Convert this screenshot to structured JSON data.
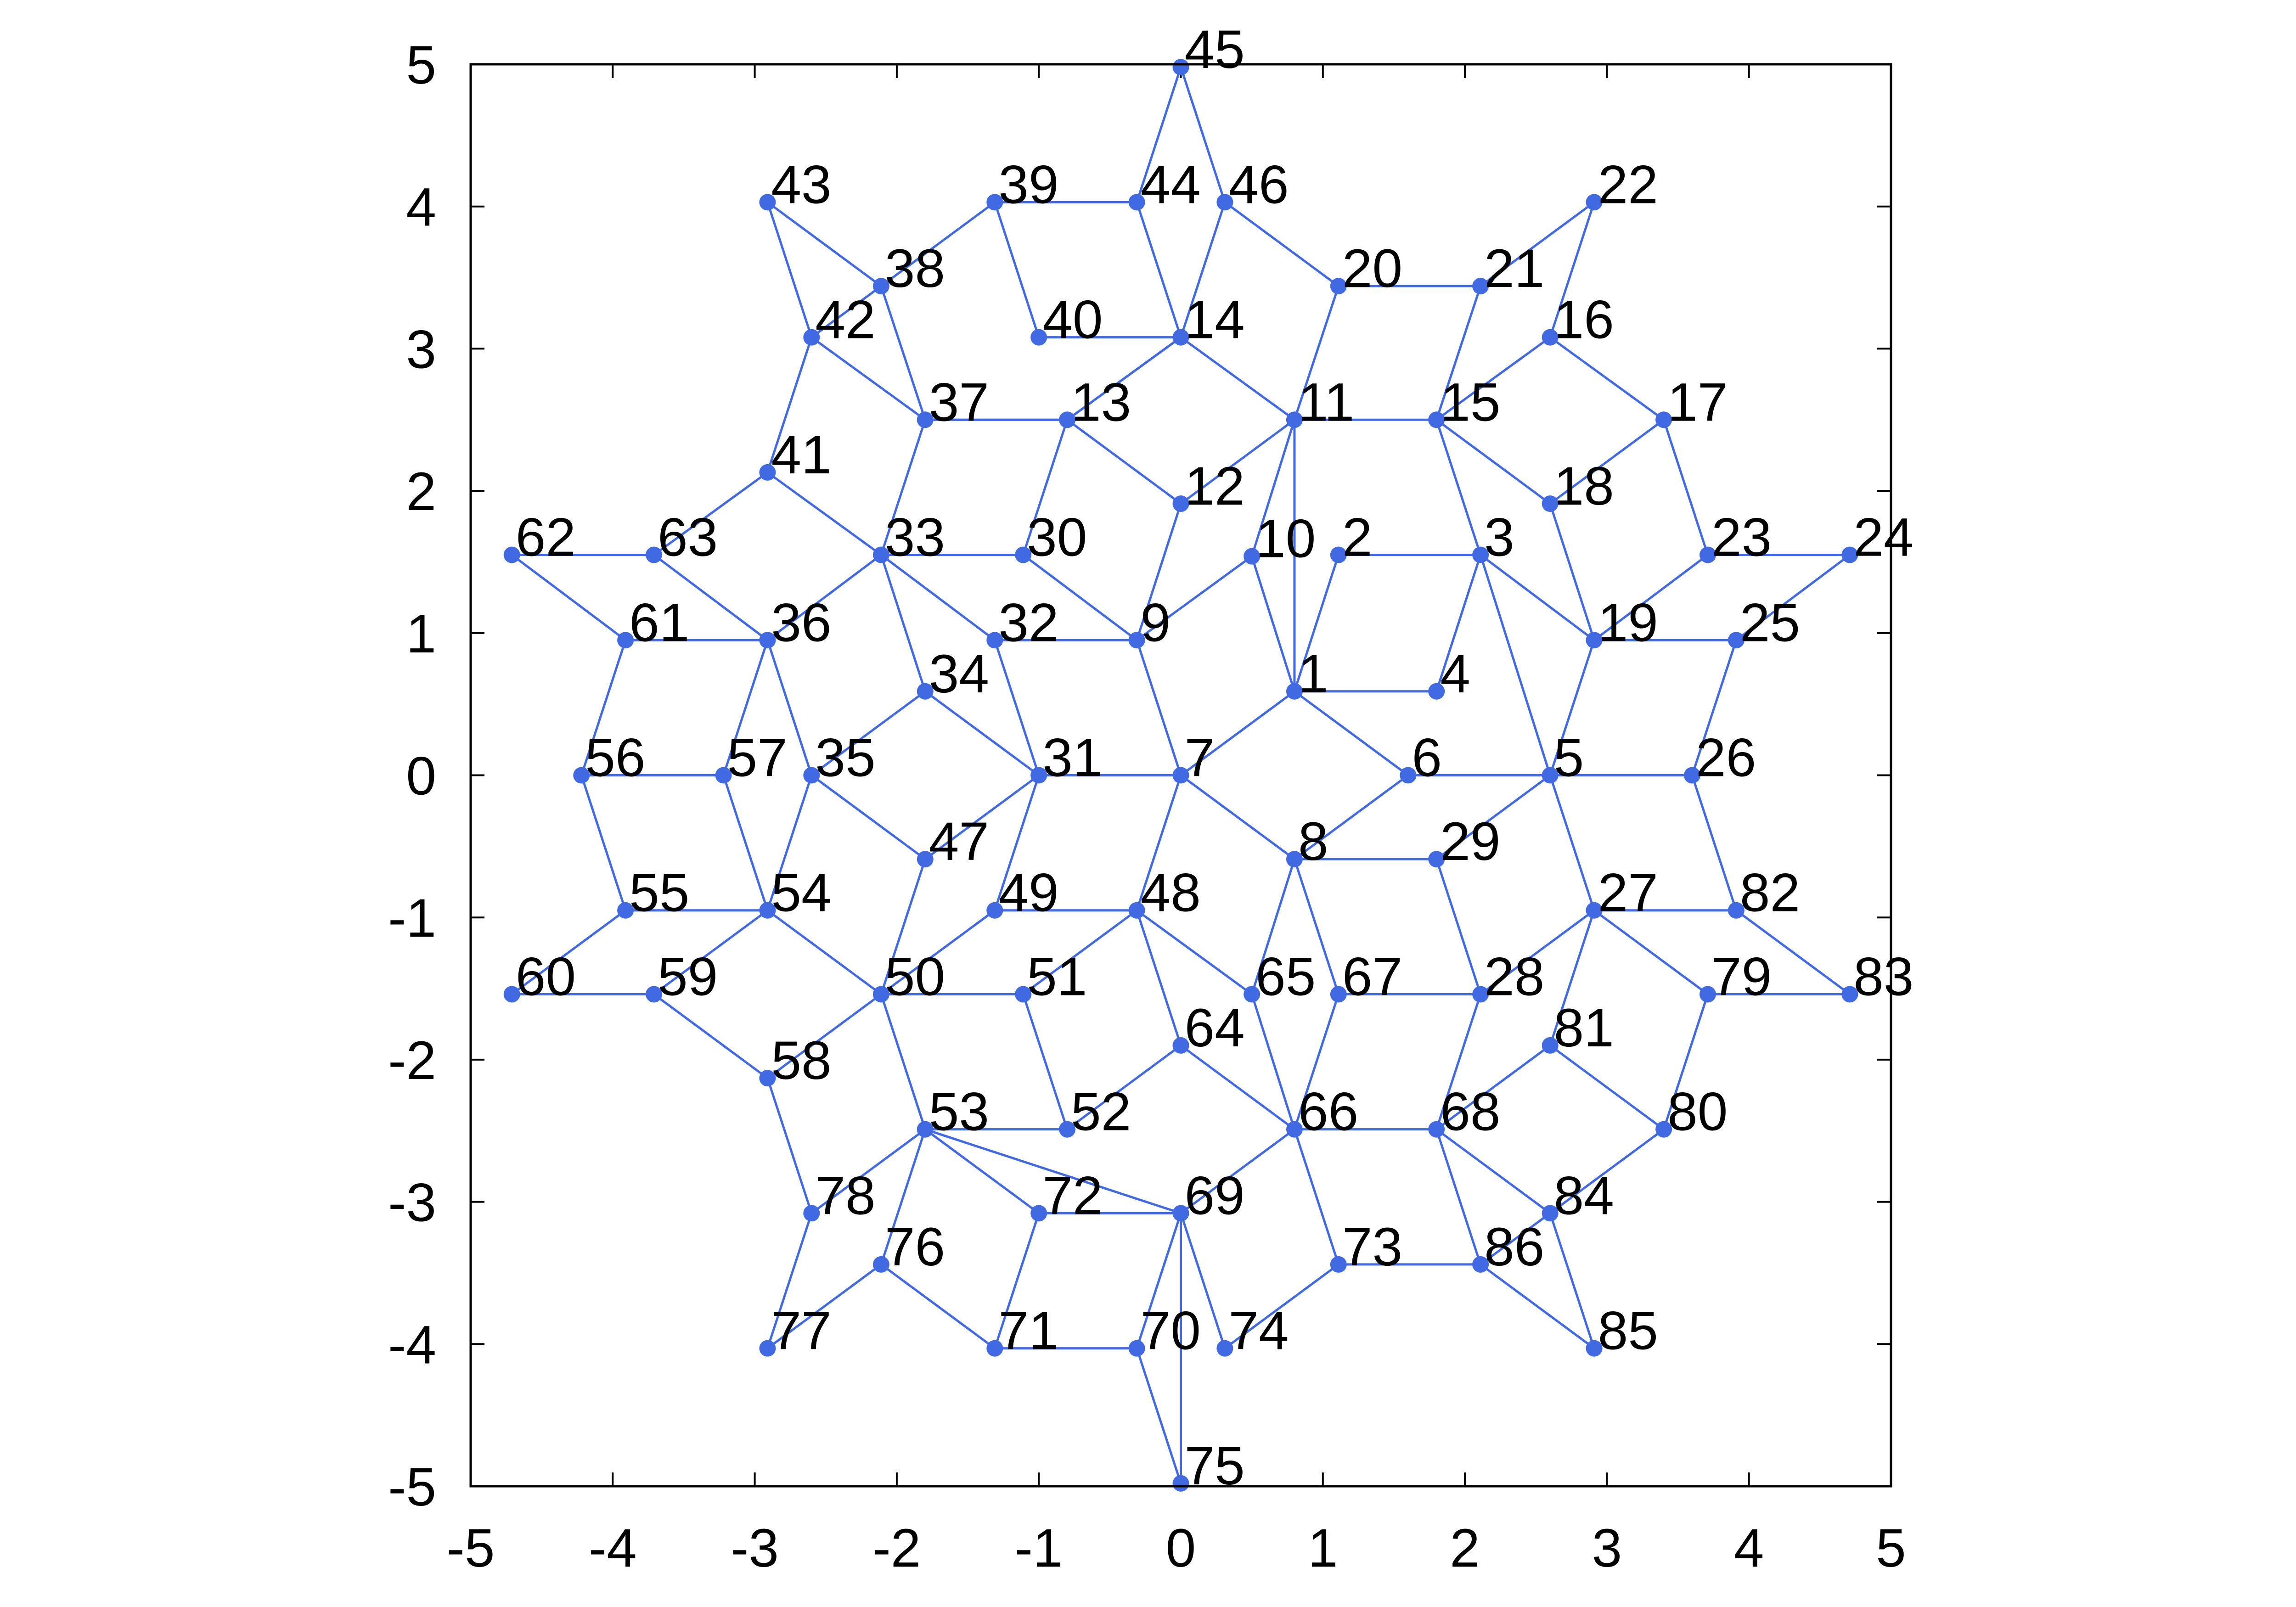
{
  "chart_data": {
    "type": "graph",
    "xlim": [
      -5,
      5
    ],
    "ylim": [
      -5,
      5
    ],
    "x_ticks": [
      -5,
      -4,
      -3,
      -2,
      -1,
      0,
      1,
      2,
      3,
      4,
      5
    ],
    "y_ticks": [
      -5,
      -4,
      -3,
      -2,
      -1,
      0,
      1,
      2,
      3,
      4,
      5
    ],
    "grid": false,
    "colors": {
      "edge": "#4169e1",
      "node": "#4169e1",
      "frame": "#000000",
      "text": "#000000"
    },
    "nodes": [
      {
        "id": "1",
        "x": 0.8,
        "y": 0.59
      },
      {
        "id": "2",
        "x": 1.11,
        "y": 1.55
      },
      {
        "id": "3",
        "x": 2.11,
        "y": 1.55
      },
      {
        "id": "4",
        "x": 1.8,
        "y": 0.59
      },
      {
        "id": "5",
        "x": 2.6,
        "y": 0.0
      },
      {
        "id": "6",
        "x": 1.6,
        "y": 0.0
      },
      {
        "id": "7",
        "x": 0.0,
        "y": 0.0
      },
      {
        "id": "8",
        "x": 0.8,
        "y": -0.59
      },
      {
        "id": "9",
        "x": -0.31,
        "y": 0.95
      },
      {
        "id": "10",
        "x": 0.5,
        "y": 1.54
      },
      {
        "id": "11",
        "x": 0.8,
        "y": 2.5
      },
      {
        "id": "12",
        "x": 0.0,
        "y": 1.91
      },
      {
        "id": "13",
        "x": -0.8,
        "y": 2.5
      },
      {
        "id": "14",
        "x": 0.0,
        "y": 3.08
      },
      {
        "id": "15",
        "x": 1.8,
        "y": 2.5
      },
      {
        "id": "16",
        "x": 2.6,
        "y": 3.08
      },
      {
        "id": "17",
        "x": 3.4,
        "y": 2.5
      },
      {
        "id": "18",
        "x": 2.6,
        "y": 1.91
      },
      {
        "id": "19",
        "x": 2.91,
        "y": 0.95
      },
      {
        "id": "20",
        "x": 1.11,
        "y": 3.44
      },
      {
        "id": "21",
        "x": 2.11,
        "y": 3.44
      },
      {
        "id": "22",
        "x": 2.91,
        "y": 4.03
      },
      {
        "id": "23",
        "x": 3.71,
        "y": 1.55
      },
      {
        "id": "24",
        "x": 4.71,
        "y": 1.55
      },
      {
        "id": "25",
        "x": 3.91,
        "y": 0.95
      },
      {
        "id": "26",
        "x": 3.6,
        "y": 0.0
      },
      {
        "id": "27",
        "x": 2.91,
        "y": -0.95
      },
      {
        "id": "28",
        "x": 2.11,
        "y": -1.54
      },
      {
        "id": "29",
        "x": 1.8,
        "y": -0.59
      },
      {
        "id": "30",
        "x": -1.11,
        "y": 1.55
      },
      {
        "id": "31",
        "x": -1.0,
        "y": 0.0
      },
      {
        "id": "32",
        "x": -1.31,
        "y": 0.95
      },
      {
        "id": "33",
        "x": -2.11,
        "y": 1.55
      },
      {
        "id": "34",
        "x": -1.8,
        "y": 0.59
      },
      {
        "id": "35",
        "x": -2.6,
        "y": 0.0
      },
      {
        "id": "36",
        "x": -2.91,
        "y": 0.95
      },
      {
        "id": "37",
        "x": -1.8,
        "y": 2.5
      },
      {
        "id": "38",
        "x": -2.11,
        "y": 3.44
      },
      {
        "id": "39",
        "x": -1.31,
        "y": 4.03
      },
      {
        "id": "40",
        "x": -1.0,
        "y": 3.08
      },
      {
        "id": "41",
        "x": -2.91,
        "y": 2.13
      },
      {
        "id": "42",
        "x": -2.6,
        "y": 3.08
      },
      {
        "id": "43",
        "x": -2.91,
        "y": 4.03
      },
      {
        "id": "44",
        "x": -0.31,
        "y": 4.03
      },
      {
        "id": "45",
        "x": 0.0,
        "y": 4.98
      },
      {
        "id": "46",
        "x": 0.31,
        "y": 4.03
      },
      {
        "id": "47",
        "x": -1.8,
        "y": -0.59
      },
      {
        "id": "48",
        "x": -0.31,
        "y": -0.95
      },
      {
        "id": "49",
        "x": -1.31,
        "y": -0.95
      },
      {
        "id": "50",
        "x": -2.11,
        "y": -1.54
      },
      {
        "id": "51",
        "x": -1.11,
        "y": -1.54
      },
      {
        "id": "52",
        "x": -0.8,
        "y": -2.49
      },
      {
        "id": "53",
        "x": -1.8,
        "y": -2.49
      },
      {
        "id": "54",
        "x": -2.91,
        "y": -0.95
      },
      {
        "id": "55",
        "x": -3.91,
        "y": -0.95
      },
      {
        "id": "56",
        "x": -4.22,
        "y": 0.0
      },
      {
        "id": "57",
        "x": -3.22,
        "y": 0.0
      },
      {
        "id": "58",
        "x": -2.91,
        "y": -2.13
      },
      {
        "id": "59",
        "x": -3.71,
        "y": -1.54
      },
      {
        "id": "60",
        "x": -4.71,
        "y": -1.54
      },
      {
        "id": "61",
        "x": -3.91,
        "y": 0.95
      },
      {
        "id": "62",
        "x": -4.71,
        "y": 1.55
      },
      {
        "id": "63",
        "x": -3.71,
        "y": 1.55
      },
      {
        "id": "64",
        "x": 0.0,
        "y": -1.9
      },
      {
        "id": "65",
        "x": 0.5,
        "y": -1.54
      },
      {
        "id": "66",
        "x": 0.8,
        "y": -2.49
      },
      {
        "id": "67",
        "x": 1.11,
        "y": -1.54
      },
      {
        "id": "68",
        "x": 1.8,
        "y": -2.49
      },
      {
        "id": "69",
        "x": 0.0,
        "y": -3.08
      },
      {
        "id": "70",
        "x": -0.31,
        "y": -4.03
      },
      {
        "id": "71",
        "x": -1.31,
        "y": -4.03
      },
      {
        "id": "72",
        "x": -1.0,
        "y": -3.08
      },
      {
        "id": "73",
        "x": 1.11,
        "y": -3.44
      },
      {
        "id": "74",
        "x": 0.31,
        "y": -4.03
      },
      {
        "id": "75",
        "x": 0.0,
        "y": -4.98
      },
      {
        "id": "76",
        "x": -2.11,
        "y": -3.44
      },
      {
        "id": "77",
        "x": -2.91,
        "y": -4.03
      },
      {
        "id": "78",
        "x": -2.6,
        "y": -3.08
      },
      {
        "id": "79",
        "x": 3.71,
        "y": -1.54
      },
      {
        "id": "80",
        "x": 3.4,
        "y": -2.49
      },
      {
        "id": "81",
        "x": 2.6,
        "y": -1.9
      },
      {
        "id": "82",
        "x": 3.91,
        "y": -0.95
      },
      {
        "id": "83",
        "x": 4.71,
        "y": -1.54
      },
      {
        "id": "84",
        "x": 2.6,
        "y": -3.08
      },
      {
        "id": "85",
        "x": 2.91,
        "y": -4.03
      },
      {
        "id": "86",
        "x": 2.11,
        "y": -3.44
      }
    ],
    "edges": [
      [
        "1",
        "2"
      ],
      [
        "2",
        "3"
      ],
      [
        "3",
        "4"
      ],
      [
        "4",
        "1"
      ],
      [
        "1",
        "6"
      ],
      [
        "6",
        "5"
      ],
      [
        "5",
        "3"
      ],
      [
        "1",
        "7"
      ],
      [
        "7",
        "8"
      ],
      [
        "8",
        "6"
      ],
      [
        "1",
        "10"
      ],
      [
        "10",
        "9"
      ],
      [
        "9",
        "7"
      ],
      [
        "1",
        "11"
      ],
      [
        "11",
        "12"
      ],
      [
        "12",
        "9"
      ],
      [
        "10",
        "11"
      ],
      [
        "11",
        "14"
      ],
      [
        "14",
        "13"
      ],
      [
        "13",
        "12"
      ],
      [
        "11",
        "15"
      ],
      [
        "15",
        "3"
      ],
      [
        "15",
        "16"
      ],
      [
        "16",
        "17"
      ],
      [
        "17",
        "18"
      ],
      [
        "18",
        "15"
      ],
      [
        "18",
        "19"
      ],
      [
        "19",
        "3"
      ],
      [
        "11",
        "20"
      ],
      [
        "20",
        "21"
      ],
      [
        "21",
        "15"
      ],
      [
        "21",
        "22"
      ],
      [
        "22",
        "16"
      ],
      [
        "17",
        "23"
      ],
      [
        "23",
        "19"
      ],
      [
        "23",
        "24"
      ],
      [
        "24",
        "25"
      ],
      [
        "25",
        "19"
      ],
      [
        "25",
        "26"
      ],
      [
        "26",
        "5"
      ],
      [
        "5",
        "19"
      ],
      [
        "5",
        "27"
      ],
      [
        "27",
        "28"
      ],
      [
        "28",
        "29"
      ],
      [
        "29",
        "5"
      ],
      [
        "8",
        "29"
      ],
      [
        "7",
        "31"
      ],
      [
        "31",
        "32"
      ],
      [
        "32",
        "9"
      ],
      [
        "9",
        "30"
      ],
      [
        "30",
        "33"
      ],
      [
        "33",
        "32"
      ],
      [
        "33",
        "34"
      ],
      [
        "34",
        "31"
      ],
      [
        "34",
        "35"
      ],
      [
        "35",
        "36"
      ],
      [
        "36",
        "33"
      ],
      [
        "13",
        "37"
      ],
      [
        "37",
        "33"
      ],
      [
        "37",
        "38"
      ],
      [
        "38",
        "42"
      ],
      [
        "42",
        "37"
      ],
      [
        "38",
        "39"
      ],
      [
        "39",
        "40"
      ],
      [
        "40",
        "14"
      ],
      [
        "13",
        "14"
      ],
      [
        "33",
        "41"
      ],
      [
        "41",
        "42"
      ],
      [
        "42",
        "43"
      ],
      [
        "43",
        "38"
      ],
      [
        "39",
        "44"
      ],
      [
        "44",
        "14"
      ],
      [
        "44",
        "45"
      ],
      [
        "45",
        "46"
      ],
      [
        "46",
        "14"
      ],
      [
        "46",
        "20"
      ],
      [
        "37",
        "13"
      ],
      [
        "30",
        "13"
      ],
      [
        "36",
        "63"
      ],
      [
        "63",
        "62"
      ],
      [
        "62",
        "61"
      ],
      [
        "61",
        "36"
      ],
      [
        "63",
        "41"
      ],
      [
        "61",
        "56"
      ],
      [
        "56",
        "57"
      ],
      [
        "57",
        "36"
      ],
      [
        "57",
        "54"
      ],
      [
        "54",
        "35"
      ],
      [
        "56",
        "55"
      ],
      [
        "55",
        "54"
      ],
      [
        "35",
        "47"
      ],
      [
        "47",
        "31"
      ],
      [
        "31",
        "49"
      ],
      [
        "49",
        "50"
      ],
      [
        "50",
        "47"
      ],
      [
        "55",
        "60"
      ],
      [
        "60",
        "59"
      ],
      [
        "59",
        "54"
      ],
      [
        "59",
        "58"
      ],
      [
        "58",
        "50"
      ],
      [
        "50",
        "54"
      ],
      [
        "7",
        "48"
      ],
      [
        "48",
        "51"
      ],
      [
        "51",
        "50"
      ],
      [
        "49",
        "48"
      ],
      [
        "48",
        "65"
      ],
      [
        "65",
        "8"
      ],
      [
        "48",
        "64"
      ],
      [
        "64",
        "66"
      ],
      [
        "66",
        "65"
      ],
      [
        "8",
        "67"
      ],
      [
        "67",
        "28"
      ],
      [
        "67",
        "66"
      ],
      [
        "66",
        "68"
      ],
      [
        "68",
        "28"
      ],
      [
        "51",
        "52"
      ],
      [
        "52",
        "64"
      ],
      [
        "50",
        "53"
      ],
      [
        "53",
        "52"
      ],
      [
        "53",
        "72"
      ],
      [
        "72",
        "69"
      ],
      [
        "69",
        "66"
      ],
      [
        "53",
        "69"
      ],
      [
        "69",
        "70"
      ],
      [
        "70",
        "71"
      ],
      [
        "71",
        "72"
      ],
      [
        "69",
        "74"
      ],
      [
        "74",
        "73"
      ],
      [
        "73",
        "66"
      ],
      [
        "69",
        "75"
      ],
      [
        "75",
        "70"
      ],
      [
        "73",
        "86"
      ],
      [
        "86",
        "68"
      ],
      [
        "53",
        "76"
      ],
      [
        "76",
        "77"
      ],
      [
        "77",
        "78"
      ],
      [
        "78",
        "53"
      ],
      [
        "58",
        "78"
      ],
      [
        "76",
        "71"
      ],
      [
        "27",
        "82"
      ],
      [
        "82",
        "26"
      ],
      [
        "27",
        "79"
      ],
      [
        "79",
        "83"
      ],
      [
        "83",
        "82"
      ],
      [
        "27",
        "81"
      ],
      [
        "81",
        "68"
      ],
      [
        "81",
        "80"
      ],
      [
        "80",
        "79"
      ],
      [
        "68",
        "84"
      ],
      [
        "84",
        "80"
      ],
      [
        "84",
        "85"
      ],
      [
        "85",
        "86"
      ],
      [
        "86",
        "84"
      ]
    ]
  }
}
